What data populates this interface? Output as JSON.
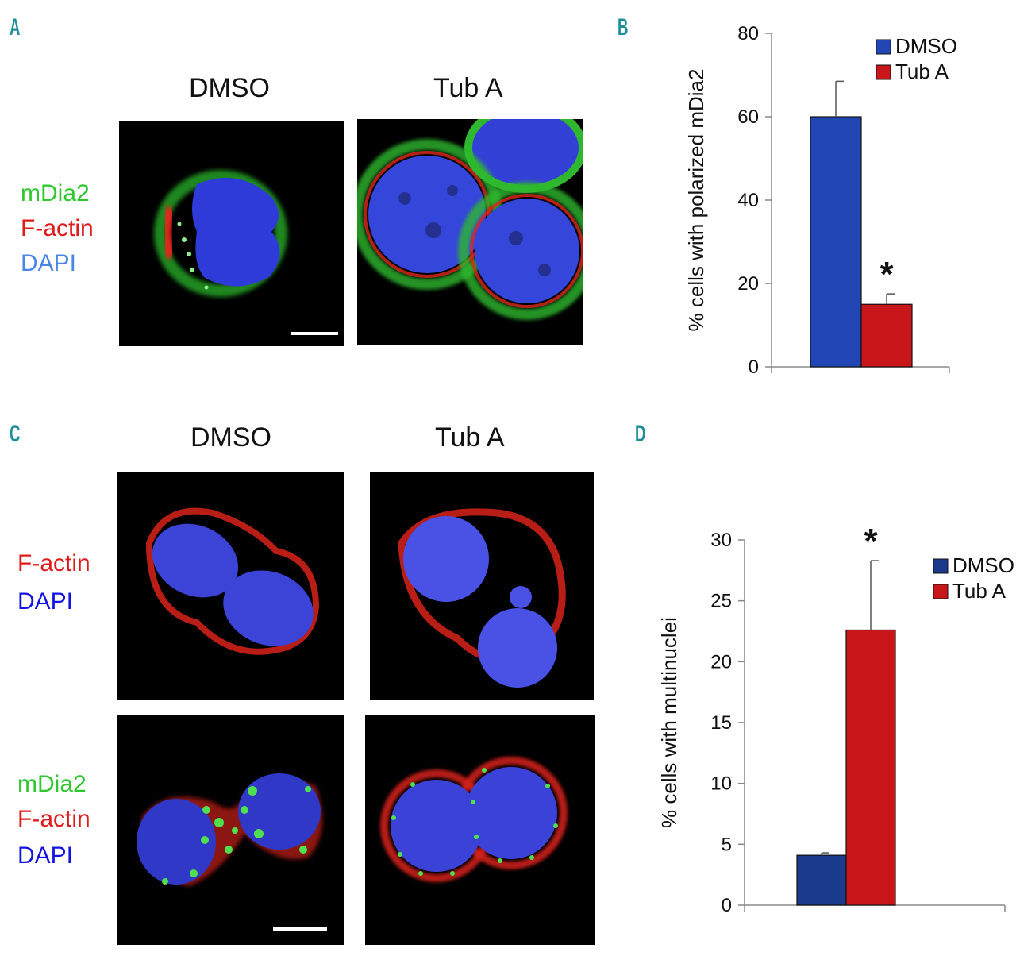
{
  "panels": {
    "a": "A",
    "b": "B",
    "c": "C",
    "d": "D"
  },
  "panel_a": {
    "col_dmso": "DMSO",
    "col_tuba": "Tub A",
    "stain_1": "mDia2",
    "stain_2": "F-actin",
    "stain_3": "DAPI"
  },
  "panel_c": {
    "col_dmso": "DMSO",
    "col_tuba": "Tub A",
    "row1_stain_1": "F-actin",
    "row1_stain_2": "DAPI",
    "row2_stain_1": "mDia2",
    "row2_stain_2": "F-actin",
    "row2_stain_3": "DAPI"
  },
  "colors": {
    "dmso_b": "#2346b5",
    "tuba": "#c8161b",
    "dmso_d": "#1a3a8c"
  },
  "chart_data": [
    {
      "id": "B",
      "type": "bar",
      "title": "",
      "xlabel": "",
      "ylabel": "% cells with polarized mDia2",
      "categories": [
        ""
      ],
      "ylim": [
        0,
        80
      ],
      "yticks": [
        0,
        20,
        40,
        60,
        80
      ],
      "legend": [
        "DMSO",
        "Tub A"
      ],
      "legend_position": "top-right",
      "series": [
        {
          "name": "DMSO",
          "values": [
            60
          ],
          "error": [
            8.5
          ]
        },
        {
          "name": "Tub A",
          "values": [
            15
          ],
          "error": [
            2.5
          ]
        }
      ],
      "annotations": [
        {
          "series": "Tub A",
          "text": "*"
        }
      ]
    },
    {
      "id": "D",
      "type": "bar",
      "title": "",
      "xlabel": "",
      "ylabel": "% cells with  multinuclei",
      "categories": [
        ""
      ],
      "ylim": [
        0,
        30
      ],
      "yticks": [
        0,
        5,
        10,
        15,
        20,
        25,
        30
      ],
      "legend": [
        "DMSO",
        "Tub A"
      ],
      "legend_position": "top-right",
      "series": [
        {
          "name": "DMSO",
          "values": [
            4.1
          ],
          "error": [
            0.2
          ]
        },
        {
          "name": "Tub A",
          "values": [
            22.6
          ],
          "error": [
            5.7
          ]
        }
      ],
      "annotations": [
        {
          "series": "Tub A",
          "text": "*"
        }
      ]
    }
  ]
}
